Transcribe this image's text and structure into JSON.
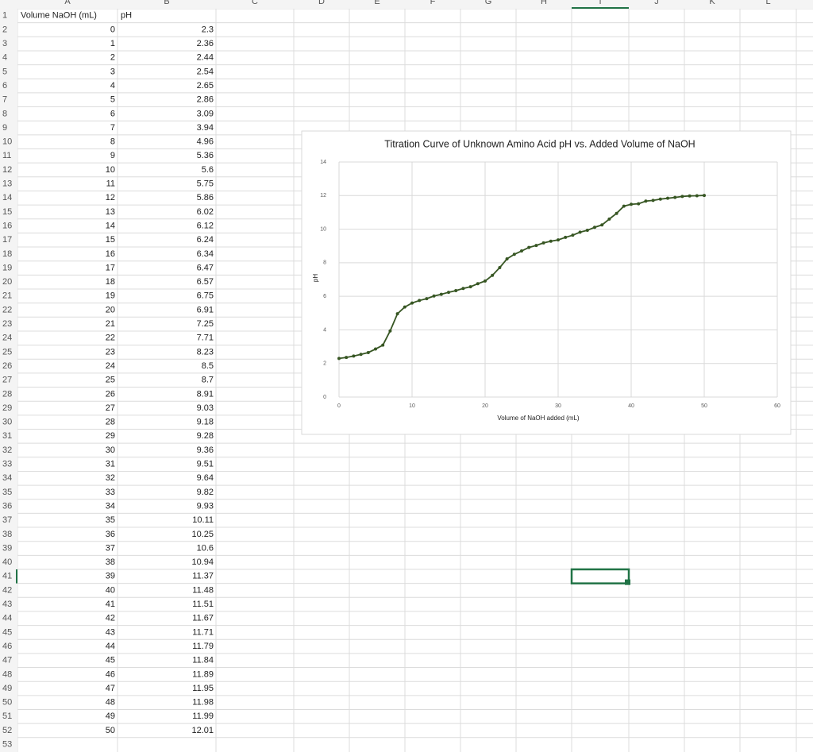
{
  "sheet": {
    "columns": [
      "A",
      "B",
      "C",
      "D",
      "E",
      "F",
      "G",
      "H",
      "I",
      "J",
      "K",
      "L"
    ],
    "row_numbers": [
      1,
      2,
      3,
      4,
      5,
      6,
      7,
      8,
      9,
      10,
      11,
      12,
      13,
      14,
      15,
      16,
      17,
      18,
      19,
      20,
      21,
      22,
      23,
      24,
      25,
      26,
      27,
      28,
      29,
      30,
      31,
      32,
      33,
      34,
      35,
      36,
      37,
      38,
      39,
      40,
      41,
      42,
      43,
      44,
      45,
      46,
      47,
      48,
      49,
      50,
      51,
      52,
      53
    ],
    "header": [
      "Volume NaOH (mL)",
      "pH"
    ]
  },
  "chart_data": {
    "type": "scatter",
    "title": "Titration Curve of Unknown Amino Acid pH vs. Added Volume of NaOH",
    "x_label": "Volume of NaOH added (mL)",
    "y_label": "pH",
    "x": [
      0,
      1,
      2,
      3,
      4,
      5,
      6,
      7,
      8,
      9,
      10,
      11,
      12,
      13,
      14,
      15,
      16,
      17,
      18,
      19,
      20,
      21,
      22,
      23,
      24,
      25,
      26,
      27,
      28,
      29,
      30,
      31,
      32,
      33,
      34,
      35,
      36,
      37,
      38,
      39,
      40,
      41,
      42,
      43,
      44,
      45,
      46,
      47,
      48,
      49,
      50
    ],
    "series": [
      {
        "name": "pH",
        "color": "#375623",
        "values": [
          2.3,
          2.36,
          2.44,
          2.54,
          2.65,
          2.86,
          3.09,
          3.94,
          4.96,
          5.36,
          5.6,
          5.75,
          5.86,
          6.02,
          6.12,
          6.24,
          6.34,
          6.47,
          6.57,
          6.75,
          6.91,
          7.25,
          7.71,
          8.23,
          8.5,
          8.7,
          8.91,
          9.03,
          9.18,
          9.28,
          9.36,
          9.51,
          9.64,
          9.82,
          9.93,
          10.11,
          10.25,
          10.6,
          10.94,
          11.37,
          11.48,
          11.51,
          11.67,
          11.71,
          11.79,
          11.84,
          11.89,
          11.95,
          11.98,
          11.99,
          12.01
        ]
      }
    ],
    "xlim": [
      0,
      60
    ],
    "xticks": [
      0,
      10,
      20,
      30,
      40,
      50,
      60
    ],
    "ylim": [
      0,
      14
    ],
    "yticks": [
      0,
      2,
      4,
      6,
      8,
      10,
      12,
      14
    ],
    "grid": true
  }
}
